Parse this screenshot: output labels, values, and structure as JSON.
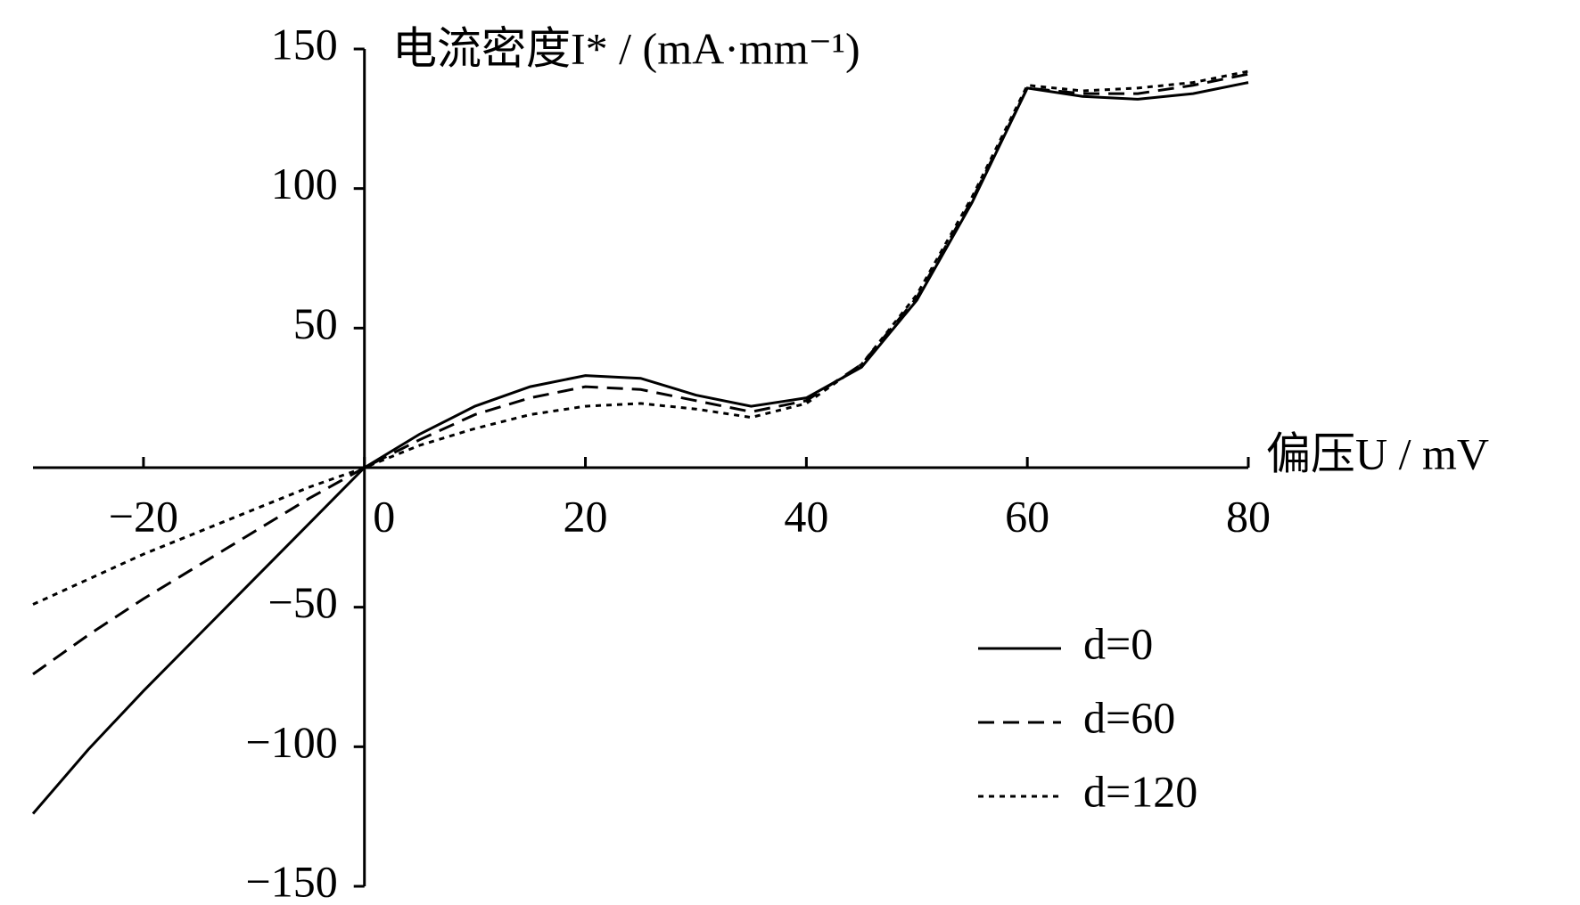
{
  "chart_data": {
    "type": "line",
    "y_label": "电流密度I* / (mA·mm⁻¹)",
    "x_label": "偏压U / mV",
    "x": [
      -30,
      -25,
      -20,
      -15,
      -10,
      -5,
      0,
      5,
      10,
      15,
      20,
      25,
      30,
      35,
      40,
      45,
      50,
      55,
      60,
      65,
      70,
      75,
      80
    ],
    "series": [
      {
        "name": "d=0",
        "color": "#000000",
        "dash": "solid",
        "values": [
          -124,
          -101,
          -80,
          -60,
          -40,
          -20,
          0,
          12,
          22,
          29,
          33,
          32,
          26,
          22,
          25,
          36,
          60,
          95,
          136,
          133,
          132,
          134,
          138
        ]
      },
      {
        "name": "d=60",
        "color": "#000000",
        "dash": "dashed",
        "values": [
          -74,
          -60,
          -47,
          -35,
          -23,
          -11,
          0,
          10,
          19,
          25,
          29,
          28,
          24,
          20,
          24,
          37,
          61,
          96,
          136,
          134,
          134,
          137,
          141
        ]
      },
      {
        "name": "d=120",
        "color": "#000000",
        "dash": "dotted",
        "values": [
          -49,
          -40,
          -31,
          -23,
          -15,
          -7,
          0,
          8,
          14,
          19,
          22,
          23,
          21,
          18,
          23,
          37,
          62,
          97,
          137,
          135,
          136,
          138,
          142
        ]
      }
    ],
    "xlim": [
      -30,
      80
    ],
    "ylim": [
      -150,
      150
    ],
    "xticks": [
      {
        "value": -20,
        "label": "−20"
      },
      0,
      20,
      40,
      60,
      80
    ],
    "yticks": [
      {
        "value": -150,
        "label": "−150"
      },
      {
        "value": -100,
        "label": "−100"
      },
      {
        "value": -50,
        "label": "−50"
      },
      50,
      100,
      150
    ],
    "grid": false,
    "legend": "lower right"
  }
}
